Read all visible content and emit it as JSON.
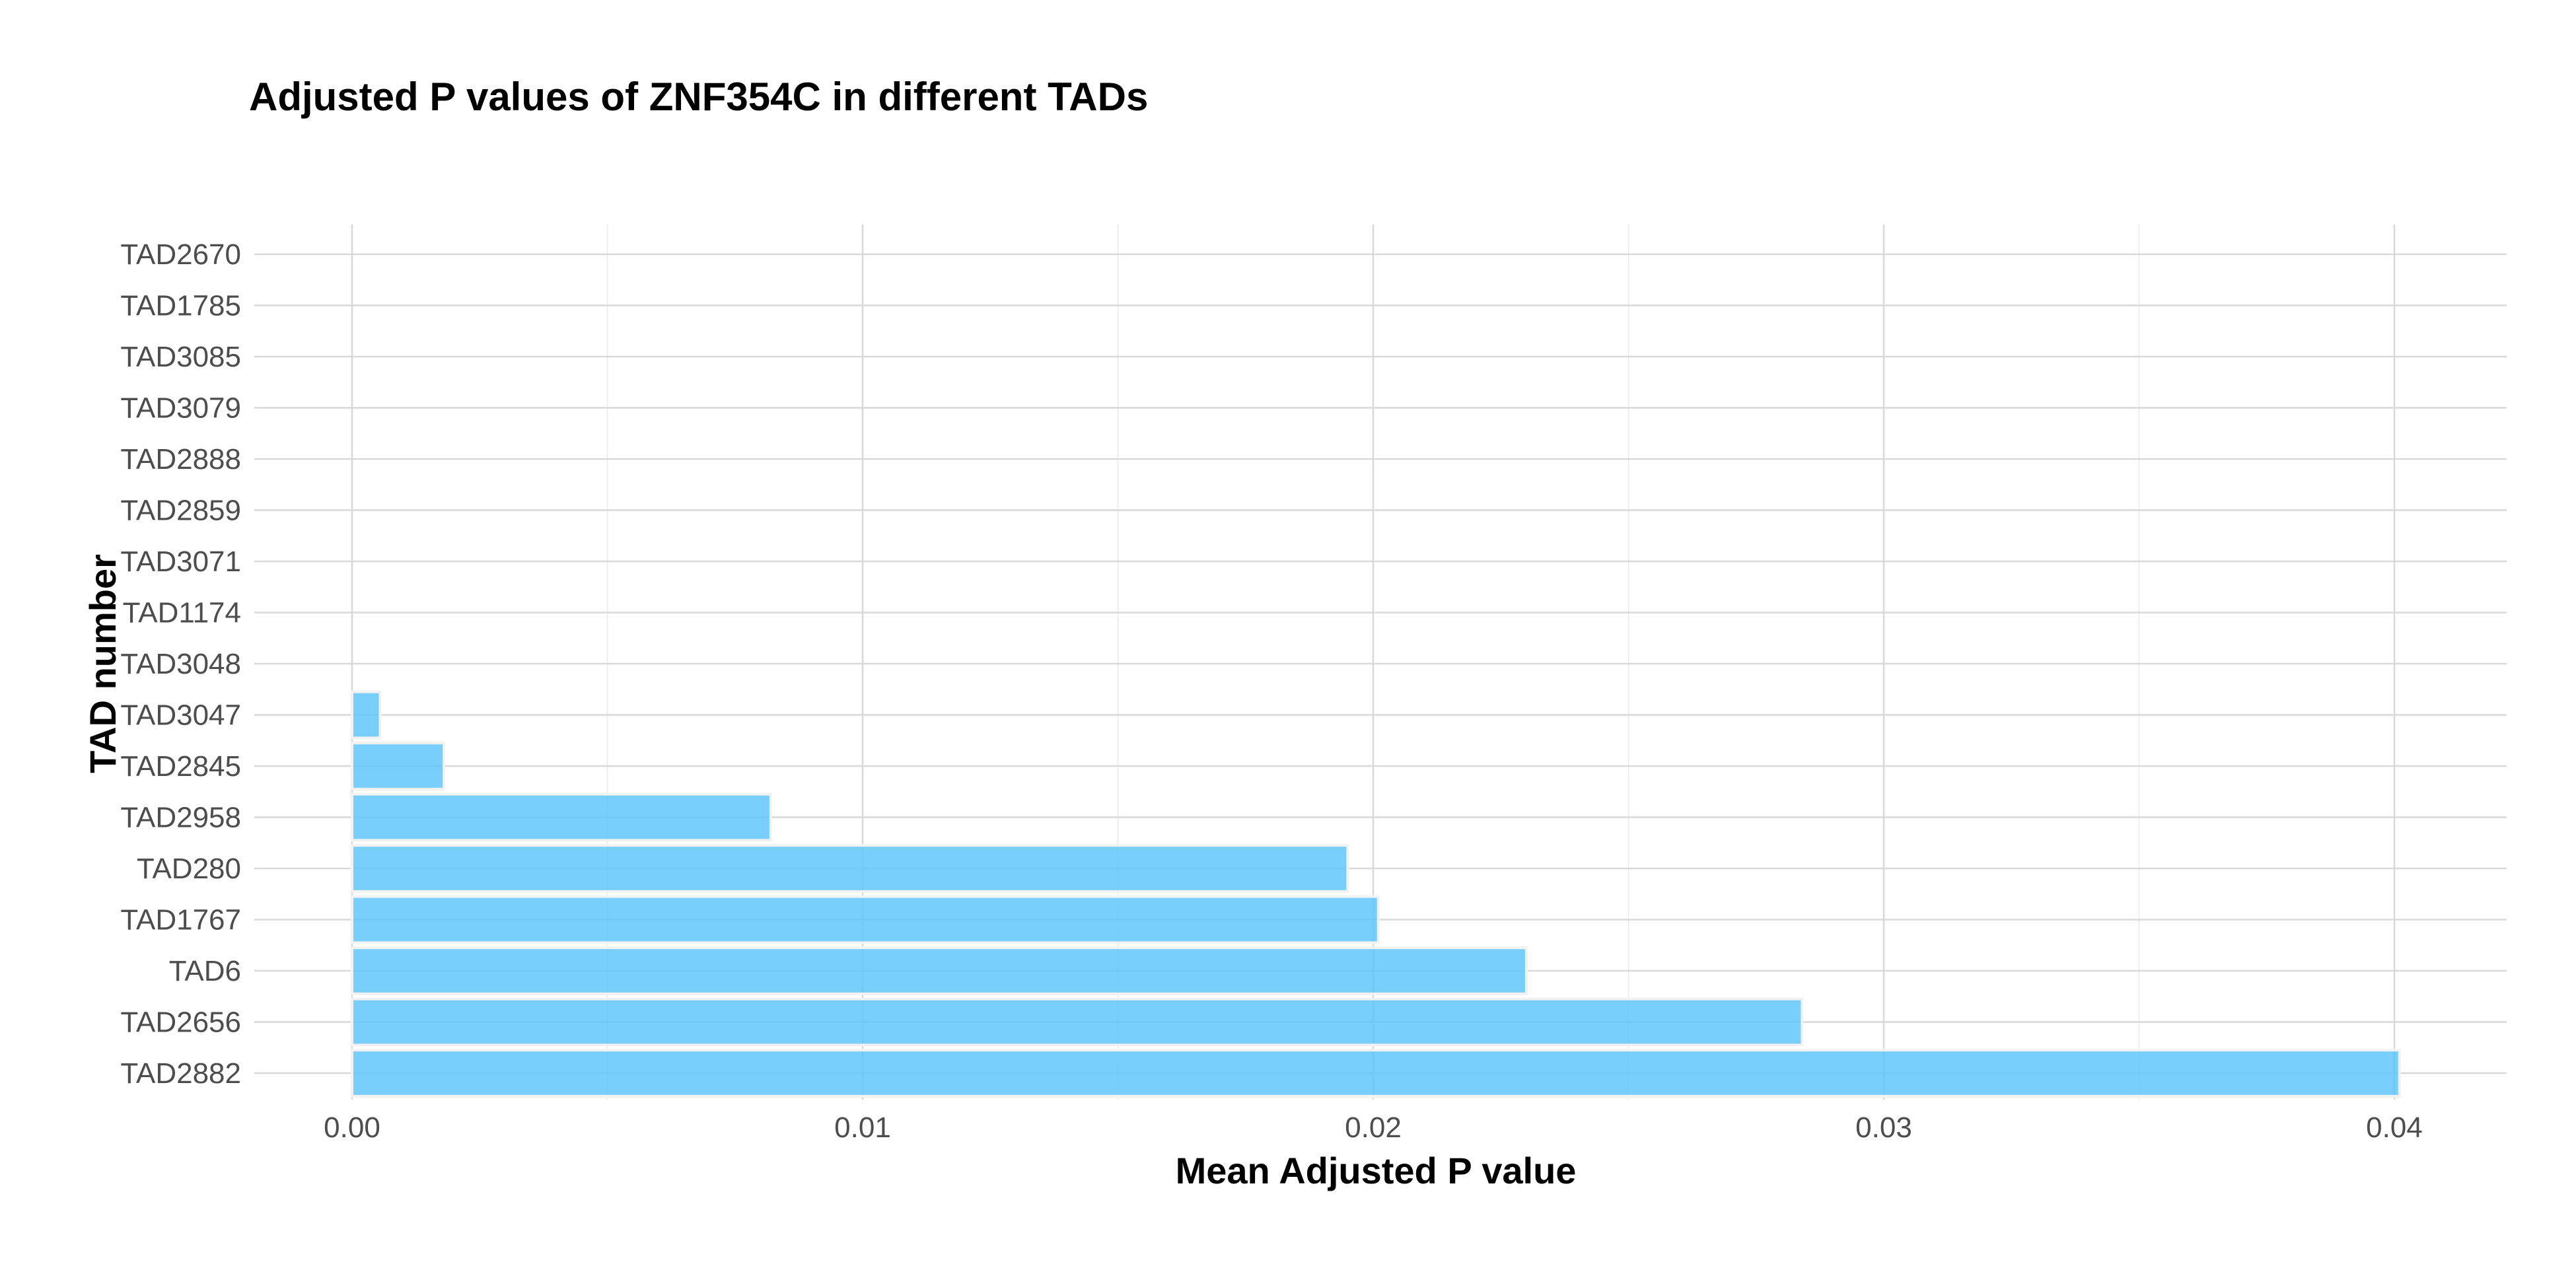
{
  "chart_data": {
    "type": "bar",
    "orientation": "horizontal",
    "title": "Adjusted P values of ZNF354C in different TADs",
    "xlabel": "Mean Adjusted P value",
    "ylabel": "TAD number",
    "categories": [
      "TAD2882",
      "TAD2656",
      "TAD6",
      "TAD1767",
      "TAD280",
      "TAD2958",
      "TAD2845",
      "TAD3047",
      "TAD3048",
      "TAD1174",
      "TAD3071",
      "TAD2859",
      "TAD2888",
      "TAD3079",
      "TAD3085",
      "TAD1785",
      "TAD2670"
    ],
    "values": [
      0.0401,
      0.0284,
      0.023,
      0.0201,
      0.0195,
      0.0082,
      0.0018,
      0.00055,
      0.0,
      0.0,
      0.0,
      0.0,
      0.0,
      0.0,
      0.0,
      0.0,
      0.0
    ],
    "xlim": [
      -0.002,
      0.042
    ],
    "xticks": [
      0.0,
      0.01,
      0.02,
      0.03,
      0.04
    ],
    "xtick_labels": [
      "0.00",
      "0.01",
      "0.02",
      "0.03",
      "0.04"
    ],
    "bar_color": "#5bc5fa",
    "grid": true,
    "legend": "none"
  }
}
